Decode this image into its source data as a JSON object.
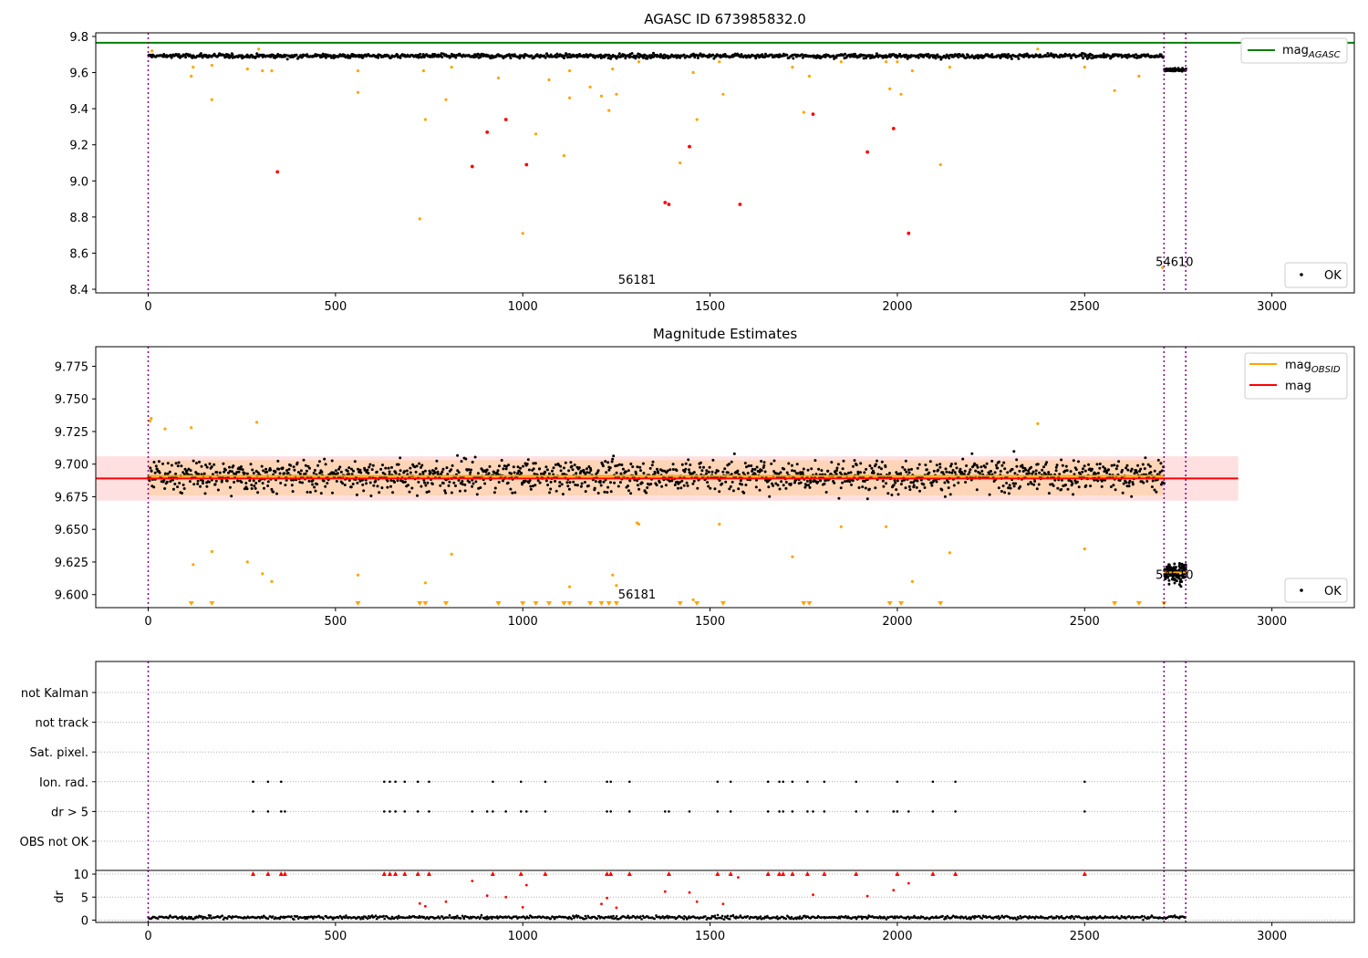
{
  "chart_data": [
    {
      "type": "scatter",
      "title": "AGASC ID 673985832.0",
      "ylim": [
        8.38,
        9.82
      ],
      "xlim": [
        -140,
        3220
      ],
      "yticks": [
        "8.4",
        "8.6",
        "8.8",
        "9.0",
        "9.2",
        "9.4",
        "9.6",
        "9.8"
      ],
      "ytick_values": [
        8.4,
        8.6,
        8.8,
        9.0,
        9.2,
        9.4,
        9.6,
        9.8
      ],
      "xticks": [
        "0",
        "500",
        "1000",
        "1500",
        "2000",
        "2500",
        "3000"
      ],
      "xtick_values": [
        0,
        500,
        1000,
        1500,
        2000,
        2500,
        3000
      ],
      "grid": false,
      "reference_line": {
        "label": "mag",
        "label_sub": "AGASC",
        "value": 9.765,
        "color": "#008000"
      },
      "legend_ok": {
        "label": "OK",
        "location": "lower-right"
      },
      "annotations": [
        {
          "text": "56181",
          "x": 1305,
          "y": 8.43
        },
        {
          "text": "54610",
          "x": 2740,
          "y": 8.53
        }
      ],
      "obs_boundaries": [
        0,
        2712,
        2770
      ],
      "series": [
        {
          "name": "OK",
          "color": "#000000",
          "segments": [
            {
              "x_start": 0,
              "x_end": 2712,
              "mean": 9.692,
              "spread": 0.012,
              "count": 1200
            },
            {
              "x_start": 2712,
              "x_end": 2770,
              "mean": 9.615,
              "spread": 0.008,
              "count": 60
            }
          ]
        },
        {
          "name": "",
          "color": "#ffa500",
          "points": [
            [
              10,
              9.72
            ],
            [
              115,
              9.58
            ],
            [
              120,
              9.63
            ],
            [
              170,
              9.45
            ],
            [
              170,
              9.64
            ],
            [
              265,
              9.62
            ],
            [
              295,
              9.73
            ],
            [
              305,
              9.61
            ],
            [
              330,
              9.61
            ],
            [
              560,
              9.61
            ],
            [
              560,
              9.49
            ],
            [
              735,
              9.61
            ],
            [
              740,
              9.34
            ],
            [
              795,
              9.45
            ],
            [
              810,
              9.63
            ],
            [
              935,
              9.57
            ],
            [
              1035,
              9.26
            ],
            [
              1070,
              9.56
            ],
            [
              1110,
              9.14
            ],
            [
              1125,
              9.46
            ],
            [
              1125,
              9.61
            ],
            [
              1180,
              9.52
            ],
            [
              1210,
              9.47
            ],
            [
              1230,
              9.39
            ],
            [
              1240,
              9.62
            ],
            [
              1250,
              9.48
            ],
            [
              1310,
              9.66
            ],
            [
              1420,
              9.1
            ],
            [
              1455,
              9.6
            ],
            [
              1465,
              9.34
            ],
            [
              1525,
              9.66
            ],
            [
              1535,
              9.48
            ],
            [
              1720,
              9.63
            ],
            [
              1750,
              9.38
            ],
            [
              1765,
              9.58
            ],
            [
              1850,
              9.66
            ],
            [
              1970,
              9.66
            ],
            [
              1980,
              9.51
            ],
            [
              2000,
              9.66
            ],
            [
              2010,
              9.48
            ],
            [
              2040,
              9.61
            ],
            [
              2115,
              9.09
            ],
            [
              2140,
              9.63
            ],
            [
              2375,
              9.73
            ],
            [
              2500,
              9.63
            ],
            [
              2580,
              9.5
            ],
            [
              2645,
              9.58
            ],
            [
              725,
              8.79
            ],
            [
              1000,
              8.71
            ],
            [
              2708,
              8.52
            ]
          ]
        },
        {
          "name": "",
          "color": "#ff0000",
          "points": [
            [
              345,
              9.05
            ],
            [
              865,
              9.08
            ],
            [
              905,
              9.27
            ],
            [
              955,
              9.34
            ],
            [
              1010,
              9.09
            ],
            [
              1380,
              8.88
            ],
            [
              1390,
              8.87
            ],
            [
              1445,
              9.19
            ],
            [
              1580,
              8.87
            ],
            [
              1775,
              9.37
            ],
            [
              1920,
              9.16
            ],
            [
              1990,
              9.29
            ],
            [
              2030,
              8.71
            ]
          ]
        }
      ]
    },
    {
      "type": "scatter",
      "title": "Magnitude Estimates",
      "ylim": [
        9.59,
        9.79
      ],
      "xlim": [
        -140,
        3220
      ],
      "yticks": [
        "9.600",
        "9.625",
        "9.650",
        "9.675",
        "9.700",
        "9.725",
        "9.750",
        "9.775"
      ],
      "ytick_values": [
        9.6,
        9.625,
        9.65,
        9.675,
        9.7,
        9.725,
        9.75,
        9.775
      ],
      "xticks": [
        "0",
        "500",
        "1000",
        "1500",
        "2000",
        "2500",
        "3000"
      ],
      "xtick_values": [
        0,
        500,
        1000,
        1500,
        2000,
        2500,
        3000
      ],
      "grid": false,
      "mag_obsid": {
        "label": "mag",
        "label_sub": "OBSID",
        "color": "#ffa500",
        "segments": [
          {
            "x_start": 0,
            "x_end": 2712,
            "value": 9.691
          },
          {
            "x_start": 2712,
            "x_end": 2770,
            "value": 9.617
          }
        ]
      },
      "mag": {
        "label": "mag",
        "color": "#ff0000",
        "value": 9.689,
        "band_low": 9.672,
        "band_high": 9.706,
        "x_start": -140,
        "x_end": 2910
      },
      "obsid_band": {
        "y_low": 9.676,
        "y_high": 9.703
      },
      "legend_ok": {
        "label": "OK",
        "location": "lower-right"
      },
      "annotations": [
        {
          "text": "56181",
          "x": 1305,
          "y": 9.597
        },
        {
          "text": "54610",
          "x": 2740,
          "y": 9.612
        }
      ],
      "obs_boundaries": [
        0,
        2712,
        2770
      ],
      "series": [
        {
          "name": "OK",
          "color": "#000000",
          "segments": [
            {
              "x_start": 0,
              "x_end": 2712,
              "mean": 9.691,
              "spread": 0.012,
              "count": 1600
            },
            {
              "x_start": 2712,
              "x_end": 2770,
              "mean": 9.617,
              "spread": 0.008,
              "count": 120
            }
          ]
        },
        {
          "name": "",
          "color": "#ffa500",
          "points": [
            [
              5,
              9.733
            ],
            [
              8,
              9.735
            ],
            [
              45,
              9.727
            ],
            [
              115,
              9.728
            ],
            [
              120,
              9.623
            ],
            [
              170,
              9.633
            ],
            [
              265,
              9.625
            ],
            [
              290,
              9.732
            ],
            [
              305,
              9.616
            ],
            [
              330,
              9.61
            ],
            [
              560,
              9.615
            ],
            [
              740,
              9.609
            ],
            [
              810,
              9.631
            ],
            [
              1125,
              9.606
            ],
            [
              1240,
              9.615
            ],
            [
              1250,
              9.607
            ],
            [
              1305,
              9.655
            ],
            [
              1310,
              9.654
            ],
            [
              1455,
              9.596
            ],
            [
              1525,
              9.654
            ],
            [
              1720,
              9.629
            ],
            [
              1850,
              9.652
            ],
            [
              1970,
              9.652
            ],
            [
              2040,
              9.61
            ],
            [
              2140,
              9.632
            ],
            [
              2375,
              9.731
            ],
            [
              2500,
              9.635
            ]
          ]
        },
        {
          "name": "below axis",
          "color": "#ffa500",
          "marker": "triangle-down",
          "x": [
            115,
            170,
            560,
            725,
            740,
            795,
            935,
            1000,
            1035,
            1070,
            1110,
            1125,
            1180,
            1210,
            1230,
            1250,
            1420,
            1465,
            1535,
            1750,
            1765,
            1980,
            2010,
            2115,
            2580,
            2645,
            2712
          ]
        }
      ]
    },
    {
      "type": "scatter",
      "categories": [
        "not Kalman",
        "not track",
        "Sat. pixel.",
        "Ion. rad.",
        "dr > 5",
        "OBS not OK"
      ],
      "grid": true,
      "xlim": [
        -140,
        3220
      ],
      "flags": {
        "Ion. rad.": [
          280,
          320,
          355,
          630,
          645,
          660,
          685,
          720,
          750,
          920,
          995,
          1060,
          1225,
          1235,
          1285,
          1520,
          1555,
          1655,
          1685,
          1695,
          1720,
          1760,
          1805,
          1890,
          2000,
          2095,
          2155,
          2500
        ],
        "dr > 5": [
          280,
          320,
          355,
          365,
          630,
          645,
          660,
          685,
          720,
          750,
          865,
          905,
          920,
          955,
          995,
          1010,
          1060,
          1225,
          1235,
          1285,
          1380,
          1390,
          1445,
          1520,
          1555,
          1655,
          1685,
          1695,
          1720,
          1760,
          1775,
          1805,
          1890,
          1920,
          1990,
          2000,
          2030,
          2095,
          2155,
          2500
        ]
      }
    },
    {
      "type": "scatter",
      "ylabel": "dr",
      "ylim": [
        -0.5,
        10.8
      ],
      "yticks": [
        "0",
        "5",
        "10"
      ],
      "ytick_values": [
        0,
        5,
        10
      ],
      "xticks": [
        "0",
        "500",
        "1000",
        "1500",
        "2000",
        "2500",
        "3000"
      ],
      "xtick_values": [
        0,
        500,
        1000,
        1500,
        2000,
        2500,
        3000
      ],
      "xlim": [
        -140,
        3220
      ],
      "grid": true,
      "clipped_at": 10,
      "series": [
        {
          "name": "OK",
          "color": "#000000",
          "segments": [
            {
              "x_start": 0,
              "x_end": 2770,
              "mean": 0.6,
              "spread": 0.35,
              "count": 900
            }
          ]
        },
        {
          "name": "",
          "color": "#ff0000",
          "points": [
            [
              280,
              10
            ],
            [
              320,
              10
            ],
            [
              355,
              10
            ],
            [
              365,
              10
            ],
            [
              630,
              10
            ],
            [
              645,
              10
            ],
            [
              660,
              10
            ],
            [
              685,
              10
            ],
            [
              720,
              10
            ],
            [
              750,
              10
            ],
            [
              920,
              10
            ],
            [
              995,
              10
            ],
            [
              1060,
              10
            ],
            [
              1225,
              10
            ],
            [
              1235,
              10
            ],
            [
              1285,
              10
            ],
            [
              1390,
              10
            ],
            [
              1520,
              10
            ],
            [
              1555,
              10
            ],
            [
              1575,
              9.3
            ],
            [
              1655,
              10
            ],
            [
              1685,
              10
            ],
            [
              1695,
              10
            ],
            [
              1720,
              10
            ],
            [
              1760,
              10
            ],
            [
              1805,
              10
            ],
            [
              1890,
              10
            ],
            [
              2000,
              10
            ],
            [
              2095,
              10
            ],
            [
              2155,
              10
            ],
            [
              2500,
              10
            ],
            [
              865,
              8.5
            ],
            [
              1010,
              7.6
            ],
            [
              1380,
              6.2
            ],
            [
              1445,
              6.0
            ],
            [
              1990,
              6.5
            ],
            [
              2030,
              8.0
            ],
            [
              905,
              5.3
            ],
            [
              955,
              5.0
            ],
            [
              1920,
              5.2
            ],
            [
              1775,
              5.5
            ],
            [
              1225,
              4.8
            ],
            [
              1535,
              3.5
            ],
            [
              1465,
              4.0
            ],
            [
              725,
              3.6
            ],
            [
              740,
              3.0
            ],
            [
              795,
              4.0
            ],
            [
              1000,
              2.8
            ],
            [
              1250,
              2.7
            ],
            [
              1210,
              3.5
            ]
          ]
        }
      ]
    }
  ]
}
